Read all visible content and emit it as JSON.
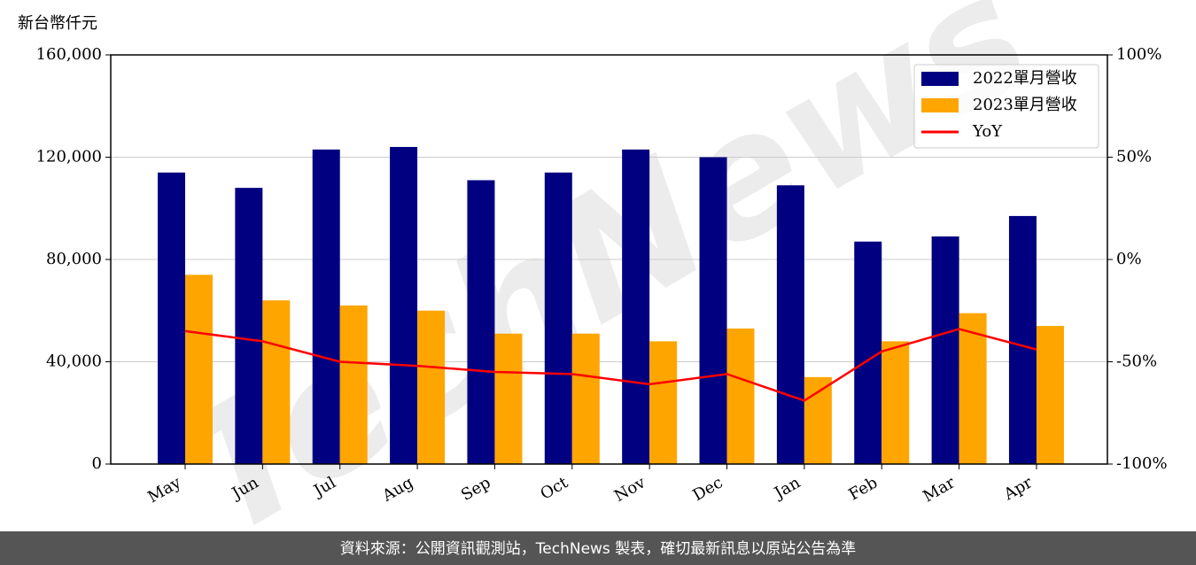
{
  "chart_data": {
    "type": "bar_line",
    "y_axis_label": "新台幣仟元",
    "watermark": "TechNews",
    "source": "資料來源：公開資訊觀測站，TechNews 製表，確切最新訊息以原站公告為準",
    "categories": [
      "May",
      "Jun",
      "Jul",
      "Aug",
      "Sep",
      "Oct",
      "Nov",
      "Dec",
      "Jan",
      "Feb",
      "Mar",
      "Apr"
    ],
    "series": [
      {
        "name": "2022單月營收",
        "color": "#000080",
        "values": [
          114000,
          108000,
          123000,
          124000,
          111000,
          114000,
          123000,
          120000,
          109000,
          87000,
          89000,
          97000
        ]
      },
      {
        "name": "2023單月營收",
        "color": "#ffa500",
        "values": [
          74000,
          64000,
          62000,
          60000,
          51000,
          51000,
          48000,
          53000,
          34000,
          48000,
          59000,
          54000
        ]
      },
      {
        "name": "YoY",
        "color": "#ff0000",
        "axis": "y2",
        "type": "line",
        "values": [
          -35,
          -40,
          -50,
          -52,
          -55,
          -56,
          -61,
          -56,
          -69,
          -45,
          -34,
          -44
        ]
      }
    ],
    "ylim": [
      0,
      160000
    ],
    "yticks": [
      0,
      {
        "value": 40000,
        "label": "40,000"
      },
      {
        "value": 80000,
        "label": "80,000"
      },
      {
        "value": 120000,
        "label": "120,000"
      },
      {
        "value": 160000,
        "label": "160,000"
      }
    ],
    "y2lim": [
      -100,
      100
    ],
    "y2ticks": [
      {
        "value": -100,
        "label": "-100%"
      },
      {
        "value": -50,
        "label": "-50%"
      },
      {
        "value": 0,
        "label": "0%"
      },
      {
        "value": 50,
        "label": "50%"
      },
      {
        "value": 100,
        "label": "100%"
      }
    ],
    "grid": true,
    "legend": "upper right"
  }
}
